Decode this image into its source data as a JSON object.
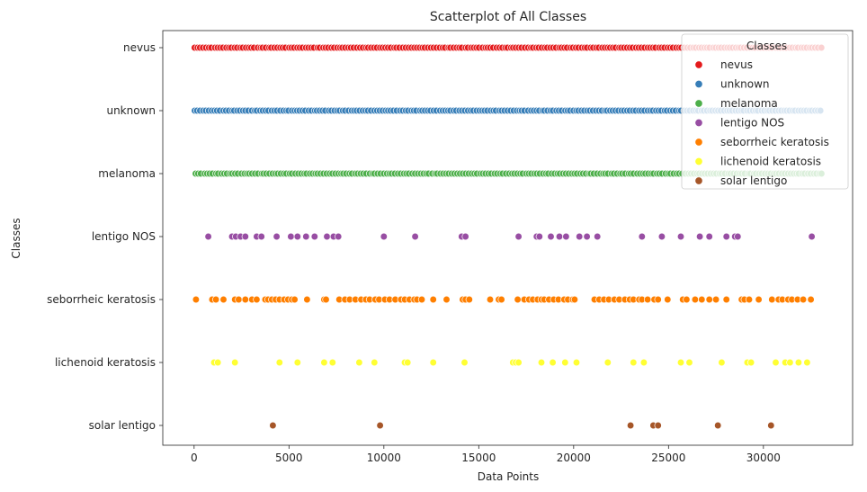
{
  "chart_data": {
    "type": "scatter",
    "title": "Scatterplot of All Classes",
    "xlabel": "Data Points",
    "ylabel": "Classes",
    "xlim": [
      -1650,
      34700
    ],
    "xticks": [
      0,
      5000,
      10000,
      15000,
      20000,
      25000,
      30000
    ],
    "xtick_labels": [
      "0",
      "5000",
      "10000",
      "15000",
      "20000",
      "25000",
      "30000"
    ],
    "categories": [
      "nevus",
      "unknown",
      "melanoma",
      "lentigo NOS",
      "seborrheic keratosis",
      "lichenoid keratosis",
      "solar lentigo"
    ],
    "grid": false,
    "legend": {
      "title": "Classes",
      "placement": "top-right"
    },
    "series": [
      {
        "name": "nevus",
        "color": "#e41a1c",
        "dense": true,
        "step": 150,
        "range": [
          0,
          33100
        ],
        "x": []
      },
      {
        "name": "unknown",
        "color": "#377eb8",
        "dense": true,
        "step": 150,
        "range": [
          0,
          33100
        ],
        "x": []
      },
      {
        "name": "melanoma",
        "color": "#4daf4a",
        "dense": true,
        "step": 150,
        "range": [
          50,
          33100
        ],
        "x": []
      },
      {
        "name": "lentigo NOS",
        "color": "#984ea3",
        "dense": false,
        "x": [
          750,
          2000,
          2200,
          2450,
          2700,
          3300,
          3550,
          4350,
          5100,
          5450,
          5900,
          6350,
          7000,
          7350,
          7600,
          10000,
          11650,
          14100,
          14300,
          17100,
          18050,
          18200,
          18800,
          19250,
          19600,
          20300,
          20700,
          21250,
          23600,
          24650,
          25650,
          26650,
          27150,
          28050,
          28500,
          28650,
          32550
        ]
      },
      {
        "name": "seborrheic keratosis",
        "color": "#ff7f00",
        "dense": false,
        "x": [
          100,
          950,
          1150,
          1550,
          2150,
          2350,
          2700,
          3050,
          3300,
          3750,
          3900,
          4100,
          4300,
          4500,
          4750,
          4950,
          5150,
          5300,
          5950,
          6850,
          6950,
          7650,
          7950,
          8200,
          8500,
          8800,
          9050,
          9250,
          9550,
          9750,
          10050,
          10300,
          10600,
          10900,
          11100,
          11350,
          11600,
          11750,
          12000,
          12600,
          13300,
          14150,
          14300,
          14500,
          15600,
          16050,
          16200,
          17050,
          17400,
          17650,
          17850,
          18100,
          18300,
          18450,
          18700,
          18950,
          19200,
          19500,
          19700,
          19950,
          20050,
          21100,
          21350,
          21600,
          21850,
          22150,
          22400,
          22700,
          22950,
          23150,
          23450,
          23600,
          23900,
          24250,
          24450,
          24950,
          25750,
          25950,
          26400,
          26750,
          27150,
          27500,
          28050,
          28850,
          29000,
          29250,
          29750,
          30450,
          30800,
          31000,
          31300,
          31500,
          31800,
          32100,
          32500
        ]
      },
      {
        "name": "lichenoid keratosis",
        "color": "#ffff33",
        "dense": false,
        "x": [
          1050,
          1250,
          2150,
          4500,
          5450,
          6850,
          7300,
          8700,
          9500,
          11100,
          11250,
          12600,
          14250,
          16800,
          16950,
          17100,
          18300,
          18900,
          19550,
          20150,
          21800,
          23150,
          23700,
          25650,
          26100,
          27800,
          29150,
          29350,
          30650,
          31150,
          31400,
          31850,
          32300
        ]
      },
      {
        "name": "solar lentigo",
        "color": "#a65628",
        "dense": false,
        "x": [
          4150,
          9800,
          23000,
          24200,
          24450,
          27600,
          30400
        ]
      }
    ]
  }
}
